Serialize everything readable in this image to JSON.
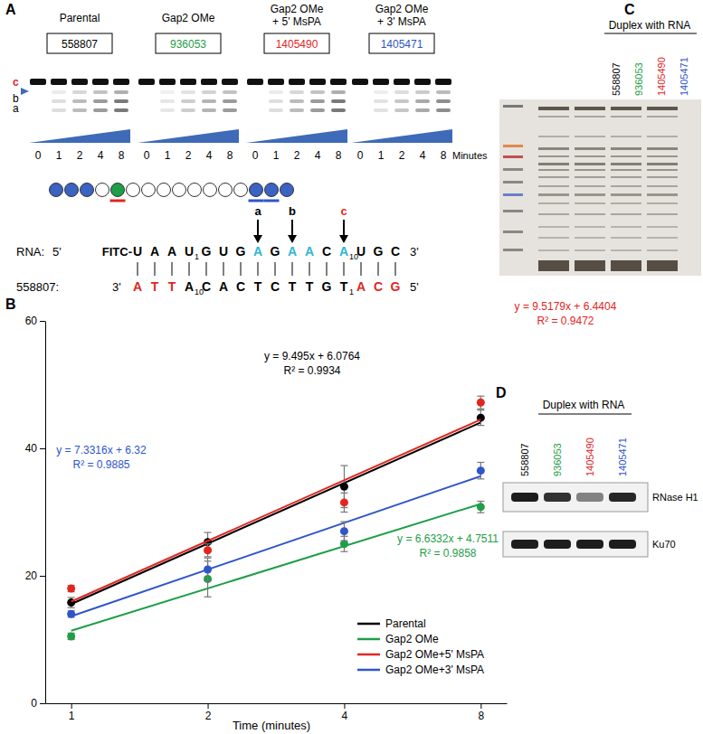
{
  "chart_data": {
    "type": "line",
    "x_label": "Time (minutes)",
    "categories": [
      "1",
      "2",
      "4",
      "8"
    ],
    "ylim": [
      0,
      60
    ],
    "yticks": [
      0,
      20,
      40,
      60
    ],
    "legend": "lower right",
    "series": [
      {
        "name": "Parental",
        "color": "#000000",
        "marker": "circle",
        "line_style": "solid",
        "values": [
          15.8,
          25.3,
          34,
          44.8
        ],
        "errors": [
          0.8,
          1.5,
          3.3,
          1.2
        ],
        "trendline": {
          "equation": "y = 9.495x + 6.0764",
          "r2": "R² = 0.9934",
          "slope": 9.495,
          "intercept": 6.0764
        }
      },
      {
        "name": "Gap2 OMe",
        "color": "#1e9e47",
        "marker": "circle",
        "line_style": "solid",
        "values": [
          10.5,
          19.5,
          25,
          30.8
        ],
        "errors": [
          0.5,
          2.8,
          1.2,
          0.9
        ],
        "trendline": {
          "equation": "y = 6.6332x + 4.7511",
          "r2": "R² = 0.9858",
          "slope": 6.6332,
          "intercept": 4.7511
        }
      },
      {
        "name": "Gap2 OMe+5' MsPA",
        "color": "#e2261f",
        "marker": "circle",
        "line_style": "solid",
        "values": [
          18,
          24,
          31.5,
          47.2
        ],
        "errors": [
          0.5,
          1.0,
          1.5,
          1.0
        ],
        "trendline": {
          "equation": "y = 9.5179x + 6.4404",
          "r2": "R² = 0.9472",
          "slope": 9.5179,
          "intercept": 6.4404
        }
      },
      {
        "name": "Gap2 OMe+3' MsPA",
        "color": "#2f55c9",
        "marker": "circle",
        "line_style": "solid",
        "values": [
          14,
          21,
          27,
          36.5
        ],
        "errors": [
          0.5,
          1.8,
          1.5,
          1.3
        ],
        "trendline": {
          "equation": "y = 7.3316x + 6.32",
          "r2": "R² = 0.9885",
          "slope": 7.3316,
          "intercept": 6.32
        }
      }
    ]
  },
  "panel_a": {
    "label": "A",
    "groups": [
      {
        "name": [
          "Parental"
        ],
        "id": "558807",
        "color": "#000000"
      },
      {
        "name": [
          "Gap2 OMe"
        ],
        "id": "936053",
        "color": "#1e9e47"
      },
      {
        "name": [
          "Gap2 OMe",
          "+ 5' MsPA"
        ],
        "id": "1405490",
        "color": "#e2261f"
      },
      {
        "name": [
          "Gap2 OMe",
          "+ 3' MsPA"
        ],
        "id": "1405471",
        "color": "#2f55c9"
      }
    ],
    "lanes": [
      "0",
      "1",
      "2",
      "4",
      "8"
    ],
    "lane_unit": "Minutes",
    "bands": [
      {
        "text": "c",
        "color": "#e2261f"
      },
      {
        "text": "b",
        "color": "#000000"
      },
      {
        "text": "a",
        "color": "#000000"
      }
    ],
    "gapmer": [
      {
        "fill": "#3a63c2"
      },
      {
        "fill": "#3a63c2"
      },
      {
        "fill": "#3a63c2"
      },
      {
        "fill": "#ffffff"
      },
      {
        "fill": "#1e9e47",
        "underline": "#e2261f"
      },
      {
        "fill": "#ffffff"
      },
      {
        "fill": "#ffffff"
      },
      {
        "fill": "#ffffff"
      },
      {
        "fill": "#ffffff"
      },
      {
        "fill": "#ffffff"
      },
      {
        "fill": "#ffffff"
      },
      {
        "fill": "#ffffff"
      },
      {
        "fill": "#ffffff"
      },
      {
        "fill": "#3a63c2",
        "underline": "#2f55c9"
      },
      {
        "fill": "#3a63c2",
        "underline": "#2f55c9"
      },
      {
        "fill": "#3a63c2"
      }
    ],
    "rna": {
      "label": "RNA:",
      "end5": "5'",
      "tag": "FITC-",
      "end3": "3'",
      "bases": [
        {
          "b": "U"
        },
        {
          "b": "A"
        },
        {
          "b": "A"
        },
        {
          "b": "U",
          "sub": "1"
        },
        {
          "b": "G"
        },
        {
          "b": "U"
        },
        {
          "b": "G"
        },
        {
          "b": "A",
          "color": "#2fb5d8",
          "cut": "a",
          "cut_color": "#000000"
        },
        {
          "b": "G"
        },
        {
          "b": "A",
          "color": "#2fb5d8",
          "cut": "b",
          "cut_color": "#000000"
        },
        {
          "b": "A",
          "color": "#2fb5d8"
        },
        {
          "b": "C"
        },
        {
          "b": "A",
          "color": "#2fb5d8",
          "sub": "10",
          "cut": "c",
          "cut_color": "#e2261f"
        },
        {
          "b": "U"
        },
        {
          "b": "G"
        },
        {
          "b": "C"
        }
      ]
    },
    "aso": {
      "label": "558807:",
      "end3": "3'",
      "end5": "5'",
      "bases": [
        {
          "b": "A",
          "color": "#e2261f"
        },
        {
          "b": "T",
          "color": "#e2261f"
        },
        {
          "b": "T",
          "color": "#e2261f"
        },
        {
          "b": "A",
          "sub": "10"
        },
        {
          "b": "C"
        },
        {
          "b": "A"
        },
        {
          "b": "C"
        },
        {
          "b": "T"
        },
        {
          "b": "C"
        },
        {
          "b": "T"
        },
        {
          "b": "T"
        },
        {
          "b": "G"
        },
        {
          "b": "T",
          "sub": "1"
        },
        {
          "b": "A",
          "color": "#e2261f"
        },
        {
          "b": "C",
          "color": "#e2261f"
        },
        {
          "b": "G",
          "color": "#e2261f"
        }
      ]
    }
  },
  "panel_b": {
    "label": "B"
  },
  "panel_c": {
    "label": "C",
    "title": "Duplex with RNA",
    "lanes": [
      {
        "text": "558807",
        "color": "#000000"
      },
      {
        "text": "936053",
        "color": "#1e9e47"
      },
      {
        "text": "1405490",
        "color": "#e2261f"
      },
      {
        "text": "1405471",
        "color": "#2f55c9"
      }
    ]
  },
  "panel_d": {
    "label": "D",
    "title": "Duplex with RNA",
    "lanes": [
      {
        "text": "558807",
        "color": "#000000"
      },
      {
        "text": "936053",
        "color": "#1e9e47"
      },
      {
        "text": "1405490",
        "color": "#e2261f"
      },
      {
        "text": "1405471",
        "color": "#2f55c9"
      }
    ],
    "rows": [
      "RNase H1",
      "Ku70"
    ]
  }
}
